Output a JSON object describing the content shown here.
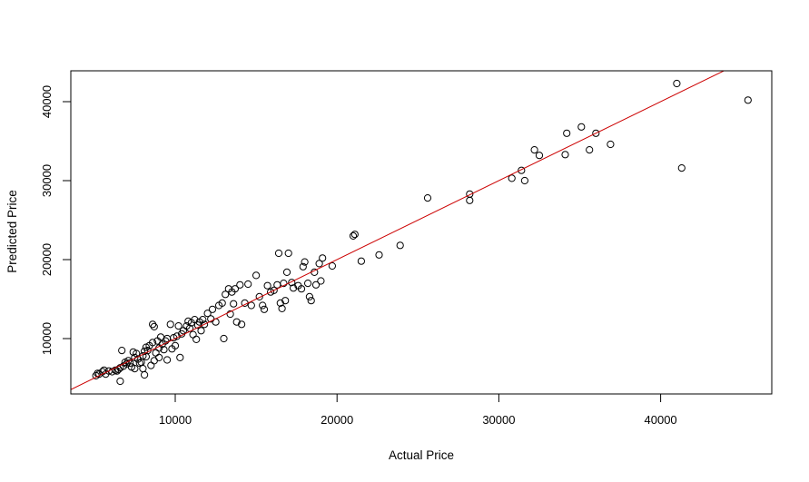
{
  "chart_data": {
    "type": "scatter",
    "title": "",
    "xlabel": "Actual Price",
    "ylabel": "Predicted Price",
    "xlim": [
      3500,
      47000
    ],
    "ylim": [
      3400,
      44400
    ],
    "xticks": [
      10000,
      20000,
      30000,
      40000
    ],
    "yticks": [
      10000,
      20000,
      30000,
      40000
    ],
    "xtick_labels": [
      "10000",
      "20000",
      "30000",
      "40000"
    ],
    "ytick_labels": [
      "10000",
      "20000",
      "30000",
      "40000"
    ],
    "grid": false,
    "legend": null,
    "marker": "open-circle",
    "point_color": "#000000",
    "reference_line": {
      "type": "abline",
      "intercept": 0,
      "slope": 1,
      "color": "#cc0000",
      "label": "y = x"
    },
    "points": [
      [
        5100,
        5300
      ],
      [
        5200,
        5600
      ],
      [
        5300,
        5500
      ],
      [
        5500,
        5800
      ],
      [
        5600,
        6000
      ],
      [
        5700,
        5500
      ],
      [
        5900,
        5900
      ],
      [
        6100,
        5800
      ],
      [
        6300,
        6000
      ],
      [
        6400,
        5900
      ],
      [
        6500,
        6100
      ],
      [
        6600,
        6300
      ],
      [
        6600,
        4600
      ],
      [
        6700,
        8500
      ],
      [
        6800,
        6500
      ],
      [
        6900,
        7000
      ],
      [
        7000,
        6800
      ],
      [
        7100,
        7200
      ],
      [
        7200,
        6900
      ],
      [
        7300,
        6400
      ],
      [
        7400,
        8300
      ],
      [
        7500,
        7600
      ],
      [
        7500,
        6200
      ],
      [
        7600,
        8100
      ],
      [
        7700,
        7400
      ],
      [
        7800,
        6900
      ],
      [
        7900,
        7000
      ],
      [
        8000,
        7800
      ],
      [
        8000,
        6200
      ],
      [
        8100,
        8400
      ],
      [
        8100,
        5400
      ],
      [
        8200,
        7700
      ],
      [
        8200,
        8900
      ],
      [
        8300,
        8500
      ],
      [
        8400,
        9100
      ],
      [
        8500,
        6600
      ],
      [
        8600,
        9500
      ],
      [
        8600,
        11800
      ],
      [
        8700,
        7200
      ],
      [
        8700,
        11500
      ],
      [
        8800,
        8200
      ],
      [
        8900,
        9700
      ],
      [
        9000,
        8800
      ],
      [
        9000,
        7600
      ],
      [
        9100,
        10200
      ],
      [
        9200,
        9300
      ],
      [
        9300,
        8600
      ],
      [
        9400,
        9700
      ],
      [
        9500,
        10000
      ],
      [
        9500,
        7300
      ],
      [
        9700,
        11800
      ],
      [
        9800,
        8700
      ],
      [
        9900,
        10100
      ],
      [
        10000,
        9100
      ],
      [
        10100,
        10300
      ],
      [
        10200,
        11600
      ],
      [
        10300,
        7600
      ],
      [
        10400,
        10600
      ],
      [
        10500,
        11000
      ],
      [
        10700,
        11600
      ],
      [
        10800,
        12200
      ],
      [
        10900,
        11300
      ],
      [
        11000,
        12000
      ],
      [
        11100,
        10500
      ],
      [
        11200,
        12400
      ],
      [
        11300,
        9900
      ],
      [
        11400,
        11700
      ],
      [
        11500,
        12100
      ],
      [
        11600,
        11000
      ],
      [
        11700,
        12400
      ],
      [
        11800,
        11800
      ],
      [
        12000,
        13200
      ],
      [
        12200,
        12500
      ],
      [
        12300,
        13700
      ],
      [
        12500,
        12100
      ],
      [
        12700,
        14200
      ],
      [
        12900,
        14500
      ],
      [
        13000,
        10000
      ],
      [
        13100,
        15600
      ],
      [
        13300,
        16300
      ],
      [
        13400,
        13100
      ],
      [
        13500,
        15900
      ],
      [
        13600,
        14400
      ],
      [
        13700,
        16300
      ],
      [
        13800,
        12100
      ],
      [
        14000,
        16800
      ],
      [
        14100,
        11800
      ],
      [
        14300,
        14500
      ],
      [
        14500,
        16900
      ],
      [
        14700,
        14200
      ],
      [
        15000,
        18000
      ],
      [
        15200,
        15300
      ],
      [
        15400,
        14200
      ],
      [
        15500,
        13700
      ],
      [
        15700,
        16700
      ],
      [
        15900,
        15900
      ],
      [
        16100,
        16100
      ],
      [
        16300,
        16800
      ],
      [
        16400,
        20800
      ],
      [
        16500,
        14500
      ],
      [
        16600,
        13800
      ],
      [
        16700,
        17000
      ],
      [
        16800,
        14800
      ],
      [
        16900,
        18400
      ],
      [
        17000,
        20800
      ],
      [
        17200,
        17100
      ],
      [
        17300,
        16400
      ],
      [
        17600,
        16700
      ],
      [
        17800,
        16300
      ],
      [
        17900,
        19100
      ],
      [
        18000,
        19700
      ],
      [
        18200,
        17000
      ],
      [
        18300,
        15300
      ],
      [
        18400,
        14800
      ],
      [
        18600,
        18400
      ],
      [
        18700,
        16800
      ],
      [
        18900,
        19500
      ],
      [
        19000,
        17300
      ],
      [
        19100,
        20200
      ],
      [
        19700,
        19200
      ],
      [
        21000,
        23000
      ],
      [
        21100,
        23200
      ],
      [
        21500,
        19800
      ],
      [
        22600,
        20600
      ],
      [
        23900,
        21800
      ],
      [
        25600,
        27800
      ],
      [
        28200,
        28300
      ],
      [
        28200,
        27500
      ],
      [
        30800,
        30300
      ],
      [
        31400,
        31300
      ],
      [
        31600,
        30000
      ],
      [
        32200,
        33900
      ],
      [
        32500,
        33200
      ],
      [
        34100,
        33300
      ],
      [
        34200,
        36000
      ],
      [
        35100,
        36800
      ],
      [
        35600,
        33900
      ],
      [
        36000,
        36000
      ],
      [
        36900,
        34600
      ],
      [
        41000,
        42300
      ],
      [
        41300,
        31600
      ],
      [
        45400,
        40200
      ]
    ]
  },
  "axes": {
    "xlabel": "Actual Price",
    "ylabel": "Predicted Price"
  },
  "colors": {
    "line": "#cc0000",
    "points": "#000000",
    "frame": "#000000",
    "background": "#ffffff"
  }
}
